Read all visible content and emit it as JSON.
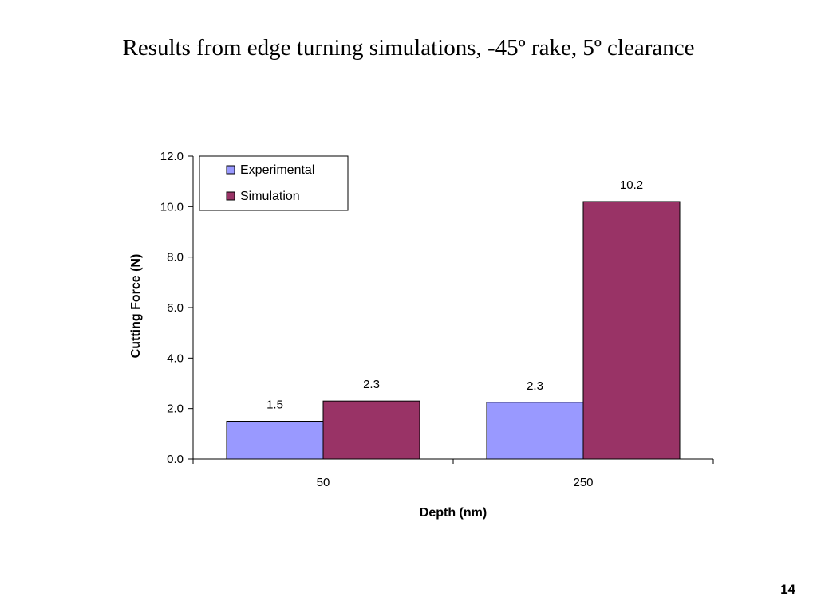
{
  "slide": {
    "title": "Results from edge turning simulations, -45º rake, 5º clearance",
    "page_number": "14"
  },
  "chart_data": {
    "type": "bar",
    "categories": [
      "50",
      "250"
    ],
    "series": [
      {
        "name": "Experimental",
        "values": [
          1.5,
          2.25
        ],
        "labels": [
          "1.5",
          "2.3"
        ],
        "color": "#9999ff"
      },
      {
        "name": "Simulation",
        "values": [
          2.3,
          10.2
        ],
        "labels": [
          "2.3",
          "10.2"
        ],
        "color": "#993366"
      }
    ],
    "xlabel": "Depth (nm)",
    "ylabel": "Cutting Force (N)",
    "ylim": [
      0,
      12
    ],
    "yticks": [
      "0.0",
      "2.0",
      "4.0",
      "6.0",
      "8.0",
      "10.0",
      "12.0"
    ],
    "grid": false,
    "legend": "top-left"
  }
}
